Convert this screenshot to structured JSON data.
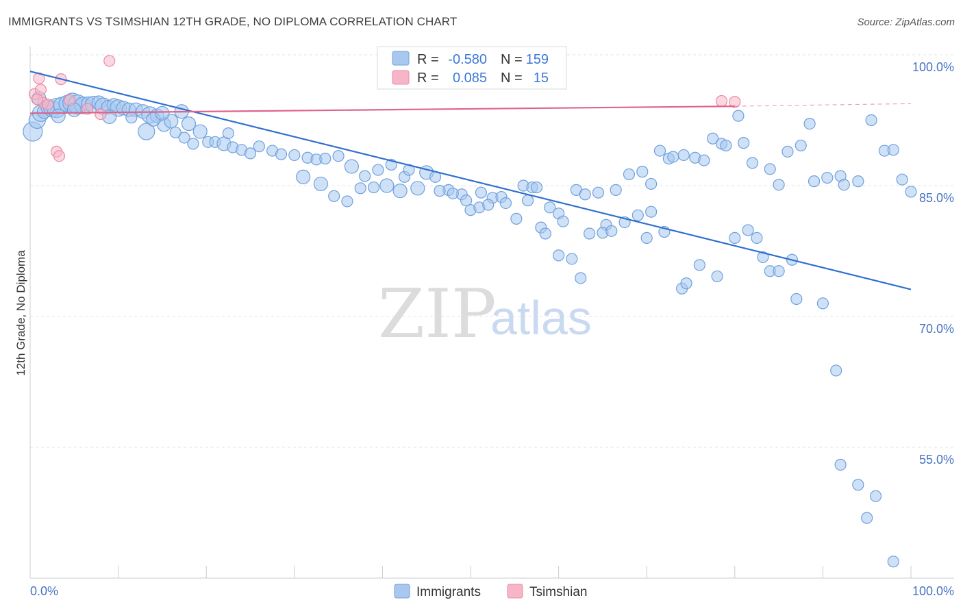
{
  "header": {
    "title": "IMMIGRANTS VS TSIMSHIAN 12TH GRADE, NO DIPLOMA CORRELATION CHART",
    "source": "Source: ZipAtlas.com"
  },
  "watermark": {
    "zip": "ZIP",
    "atlas": "atlas"
  },
  "legend": {
    "rows": [
      {
        "r_label": "R =",
        "r_value": "-0.580",
        "n_label": "N =",
        "n_value": "159",
        "color": "#a8c8f0"
      },
      {
        "r_label": "R =",
        "r_value": "0.085",
        "n_label": "N =",
        "n_value": "15",
        "color": "#f7b6c8"
      }
    ]
  },
  "bottom_legend": {
    "immigrants": "Immigrants",
    "tsimshian": "Tsimshian"
  },
  "axis_text": {
    "y_label": "12th Grade, No Diploma",
    "x_min": "0.0%",
    "x_max": "100.0%",
    "y_ticks": [
      "100.0%",
      "85.0%",
      "70.0%",
      "55.0%"
    ]
  },
  "colors": {
    "immigrants_fill": "#a8c8f0",
    "immigrants_stroke": "#6fa0dc",
    "immigrants_line": "#2f6fd0",
    "tsimshian_fill": "#f7b6c8",
    "tsimshian_stroke": "#e88aa6",
    "tsimshian_line": "#e0638a",
    "grid": "#dfe3ea",
    "tick_text": "#4472c4"
  },
  "chart_data": {
    "type": "scatter",
    "xlim": [
      0,
      100
    ],
    "ylim": [
      40,
      100
    ],
    "yticks": [
      55,
      70,
      85,
      100
    ],
    "grid": "horizontal dashed",
    "legend_position": "top-center",
    "series": [
      {
        "name": "Immigrants",
        "trend": {
          "x": [
            0,
            100
          ],
          "y": [
            98.1,
            73.1
          ]
        },
        "points": [
          [
            0.3,
            91.2,
            14
          ],
          [
            0.8,
            92.5,
            12
          ],
          [
            1.2,
            93.3,
            12
          ],
          [
            1.6,
            93.5,
            10
          ],
          [
            2.0,
            94.0,
            10
          ],
          [
            2.5,
            93.8,
            12
          ],
          [
            3.0,
            93.9,
            14
          ],
          [
            3.6,
            94.2,
            12
          ],
          [
            4.2,
            94.4,
            12
          ],
          [
            4.8,
            94.5,
            14
          ],
          [
            5.4,
            94.3,
            14
          ],
          [
            6.0,
            94.2,
            12
          ],
          [
            6.6,
            94.4,
            10
          ],
          [
            7.2,
            94.3,
            12
          ],
          [
            7.8,
            94.5,
            10
          ],
          [
            8.3,
            94.1,
            12
          ],
          [
            8.9,
            94.0,
            10
          ],
          [
            9.5,
            94.2,
            10
          ],
          [
            10.0,
            93.9,
            12
          ],
          [
            10.6,
            93.9,
            10
          ],
          [
            11.2,
            93.7,
            10
          ],
          [
            12.0,
            93.7,
            10
          ],
          [
            12.8,
            93.5,
            10
          ],
          [
            13.6,
            93.1,
            12
          ],
          [
            14.4,
            93.0,
            10
          ],
          [
            1.0,
            95.0,
            10
          ],
          [
            3.2,
            93.0,
            10
          ],
          [
            5.0,
            93.7,
            10
          ],
          [
            9.0,
            92.9,
            10
          ],
          [
            11.5,
            92.8,
            8
          ],
          [
            15.2,
            92.0,
            10
          ],
          [
            16.0,
            92.4,
            10
          ],
          [
            17.2,
            93.5,
            10
          ],
          [
            18.0,
            92.1,
            10
          ],
          [
            13.2,
            91.2,
            12
          ],
          [
            14.0,
            92.6,
            10
          ],
          [
            15.0,
            93.3,
            10
          ],
          [
            16.5,
            91.1,
            8
          ],
          [
            17.5,
            90.5,
            8
          ],
          [
            18.5,
            89.8,
            8
          ],
          [
            19.3,
            91.2,
            10
          ],
          [
            20.2,
            90.0,
            8
          ],
          [
            21.0,
            90.0,
            8
          ],
          [
            22.0,
            89.8,
            10
          ],
          [
            23.0,
            89.4,
            8
          ],
          [
            24.0,
            89.1,
            8
          ],
          [
            25.0,
            88.7,
            8
          ],
          [
            22.5,
            91.0,
            8
          ],
          [
            26.0,
            89.5,
            8
          ],
          [
            27.5,
            89.0,
            8
          ],
          [
            28.5,
            88.6,
            8
          ],
          [
            30.0,
            88.5,
            8
          ],
          [
            31.5,
            88.2,
            8
          ],
          [
            32.5,
            88.0,
            8
          ],
          [
            33.5,
            88.1,
            8
          ],
          [
            35.0,
            88.4,
            8
          ],
          [
            36.5,
            87.2,
            10
          ],
          [
            38.0,
            86.1,
            8
          ],
          [
            39.5,
            86.8,
            8
          ],
          [
            41.0,
            87.4,
            8
          ],
          [
            42.5,
            86.0,
            8
          ],
          [
            43.0,
            86.8,
            8
          ],
          [
            45.0,
            86.5,
            10
          ],
          [
            46.0,
            86.0,
            8
          ],
          [
            47.5,
            84.5,
            8
          ],
          [
            49.0,
            84.0,
            8
          ],
          [
            50.0,
            82.2,
            8
          ],
          [
            51.2,
            84.2,
            8
          ],
          [
            52.5,
            83.6,
            8
          ],
          [
            53.5,
            83.7,
            8
          ],
          [
            55.2,
            81.2,
            8
          ],
          [
            56.0,
            85.0,
            8
          ],
          [
            57.0,
            84.8,
            8
          ],
          [
            57.5,
            84.8,
            8
          ],
          [
            59.0,
            82.5,
            8
          ],
          [
            60.0,
            81.8,
            8
          ],
          [
            60.5,
            80.9,
            8
          ],
          [
            62.0,
            84.5,
            8
          ],
          [
            63.0,
            84.0,
            8
          ],
          [
            64.5,
            84.2,
            8
          ],
          [
            65.4,
            80.5,
            8
          ],
          [
            66.5,
            84.5,
            8
          ],
          [
            67.5,
            80.8,
            8
          ],
          [
            68.0,
            86.3,
            8
          ],
          [
            69.5,
            86.6,
            8
          ],
          [
            70.5,
            85.2,
            8
          ],
          [
            71.5,
            89.0,
            8
          ],
          [
            72.5,
            88.1,
            8
          ],
          [
            73.0,
            88.3,
            8
          ],
          [
            74.2,
            88.5,
            8
          ],
          [
            75.5,
            88.2,
            8
          ],
          [
            76.5,
            87.9,
            8
          ],
          [
            77.5,
            90.4,
            8
          ],
          [
            78.5,
            89.8,
            8
          ],
          [
            79.0,
            89.6,
            8
          ],
          [
            80.4,
            93.0,
            8
          ],
          [
            81.0,
            89.9,
            8
          ],
          [
            82.0,
            87.6,
            8
          ],
          [
            84.0,
            86.9,
            8
          ],
          [
            85.0,
            85.1,
            8
          ],
          [
            86.0,
            88.9,
            8
          ],
          [
            87.5,
            89.6,
            8
          ],
          [
            88.5,
            92.1,
            8
          ],
          [
            89.0,
            85.5,
            8
          ],
          [
            90.5,
            85.9,
            8
          ],
          [
            92.0,
            86.1,
            8
          ],
          [
            92.4,
            85.1,
            8
          ],
          [
            94.0,
            85.5,
            8
          ],
          [
            95.5,
            92.5,
            8
          ],
          [
            97.0,
            89.0,
            8
          ],
          [
            98.0,
            89.1,
            8
          ],
          [
            99.0,
            85.7,
            8
          ],
          [
            100.0,
            84.3,
            8
          ],
          [
            31.0,
            86.0,
            10
          ],
          [
            33.0,
            85.2,
            10
          ],
          [
            34.5,
            83.8,
            8
          ],
          [
            36.0,
            83.2,
            8
          ],
          [
            37.5,
            84.7,
            8
          ],
          [
            39.0,
            84.8,
            8
          ],
          [
            40.5,
            85.0,
            10
          ],
          [
            42.0,
            84.4,
            10
          ],
          [
            44.0,
            84.7,
            10
          ],
          [
            46.5,
            84.4,
            8
          ],
          [
            48.0,
            84.1,
            8
          ],
          [
            49.5,
            83.3,
            8
          ],
          [
            51.0,
            82.5,
            8
          ],
          [
            52.0,
            82.8,
            8
          ],
          [
            54.0,
            83.0,
            8
          ],
          [
            56.5,
            83.3,
            8
          ],
          [
            58.0,
            80.2,
            8
          ],
          [
            58.5,
            79.5,
            8
          ],
          [
            60.0,
            77.0,
            8
          ],
          [
            61.5,
            76.6,
            8
          ],
          [
            62.5,
            74.4,
            8
          ],
          [
            63.5,
            79.5,
            8
          ],
          [
            65.0,
            79.6,
            8
          ],
          [
            66.0,
            79.8,
            8
          ],
          [
            69.0,
            81.6,
            8
          ],
          [
            70.0,
            79.0,
            8
          ],
          [
            70.5,
            82.0,
            8
          ],
          [
            72.0,
            79.7,
            8
          ],
          [
            74.0,
            73.2,
            8
          ],
          [
            74.5,
            73.8,
            8
          ],
          [
            76.0,
            75.9,
            8
          ],
          [
            78.0,
            74.6,
            8
          ],
          [
            80.0,
            79.0,
            8
          ],
          [
            81.5,
            79.9,
            8
          ],
          [
            82.5,
            79.0,
            8
          ],
          [
            83.2,
            76.8,
            8
          ],
          [
            84.0,
            75.2,
            8
          ],
          [
            85.0,
            75.2,
            8
          ],
          [
            86.5,
            76.5,
            8
          ],
          [
            87.0,
            72.0,
            8
          ],
          [
            90.0,
            71.5,
            8
          ],
          [
            91.5,
            63.8,
            8
          ],
          [
            92.0,
            53.0,
            8
          ],
          [
            94.0,
            50.7,
            8
          ],
          [
            95.0,
            46.9,
            8
          ],
          [
            96.0,
            49.4,
            8
          ],
          [
            98.0,
            41.9,
            8
          ]
        ]
      },
      {
        "name": "Tsimshian",
        "trend": {
          "x": [
            0,
            80
          ],
          "y": [
            93.3,
            94.1
          ],
          "dashed_to": [
            100,
            94.4
          ]
        },
        "points": [
          [
            0.5,
            95.5,
            8
          ],
          [
            1.0,
            97.3,
            8
          ],
          [
            3.5,
            97.2,
            8
          ],
          [
            9.0,
            99.3,
            8
          ],
          [
            8.0,
            93.2,
            8
          ],
          [
            1.5,
            94.5,
            8
          ],
          [
            2.0,
            94.3,
            8
          ],
          [
            0.8,
            94.9,
            8
          ],
          [
            4.5,
            94.8,
            8
          ],
          [
            6.5,
            93.8,
            8
          ],
          [
            3.0,
            88.9,
            8
          ],
          [
            3.3,
            88.4,
            8
          ],
          [
            78.5,
            94.7,
            8
          ],
          [
            80.0,
            94.6,
            8
          ],
          [
            1.2,
            96.0,
            8
          ]
        ]
      }
    ]
  }
}
